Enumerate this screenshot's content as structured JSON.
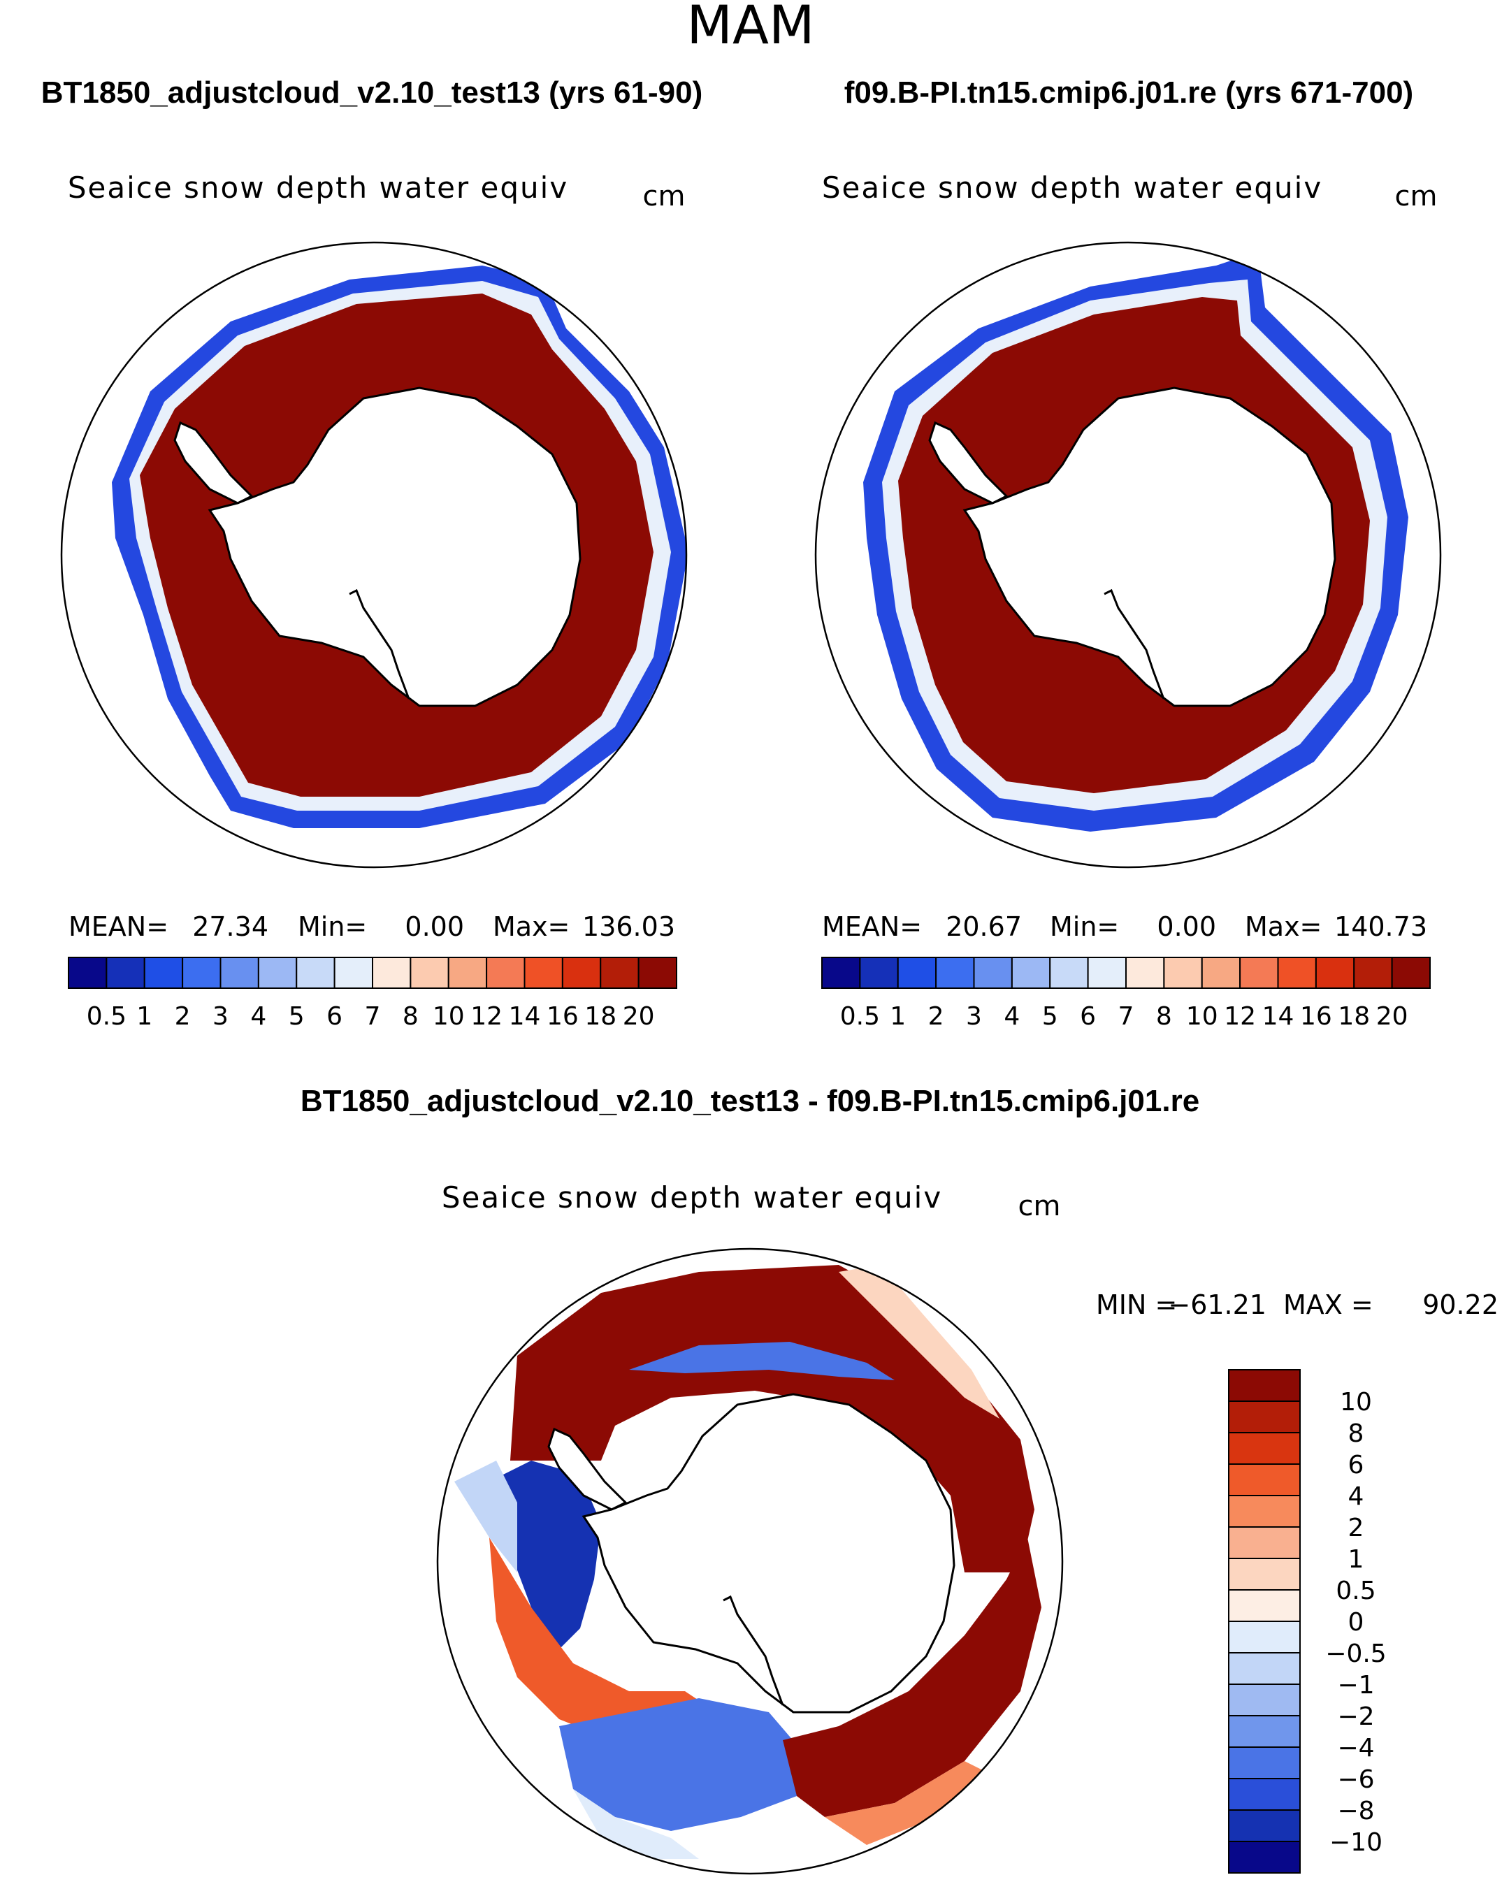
{
  "season": "MAM",
  "colors": {
    "seq": [
      "#08088a",
      "#1530b8",
      "#1f4fe6",
      "#3c6ef0",
      "#6890f0",
      "#9cb8f4",
      "#c8daf8",
      "#e4eefa",
      "#fde9dc",
      "#fccbb0",
      "#f7a883",
      "#f47a55",
      "#ef5126",
      "#d9300f",
      "#b31e08",
      "#8c0a04"
    ],
    "div": [
      "#8c0a04",
      "#b31e08",
      "#d93510",
      "#ef5a2a",
      "#f78a5c",
      "#f9b090",
      "#fcd6c0",
      "#fdeee4",
      "#e0ecfb",
      "#c2d6f7",
      "#9fbaf2",
      "#7096ec",
      "#4a74e6",
      "#2a4fd9",
      "#1532b2",
      "#08088a"
    ]
  },
  "top_left": {
    "case_title": "BT1850_adjustcloud_v2.10_test13 (yrs 61-90)",
    "var_title": "Seaice snow depth water equiv",
    "units": "cm",
    "stats": {
      "mean_label": "MEAN=",
      "mean": "27.34",
      "min_label": "Min=",
      "min": "0.00",
      "max_label": "Max=",
      "max": "136.03"
    },
    "colorbar_labels": [
      "0.5",
      "1",
      "2",
      "3",
      "4",
      "5",
      "6",
      "7",
      "8",
      "10",
      "12",
      "14",
      "16",
      "18",
      "20"
    ]
  },
  "top_right": {
    "case_title": "f09.B-PI.tn15.cmip6.j01.re (yrs 671-700)",
    "var_title": "Seaice snow depth water equiv",
    "units": "cm",
    "stats": {
      "mean_label": "MEAN=",
      "mean": "20.67",
      "min_label": "Min=",
      "min": "0.00",
      "max_label": "Max=",
      "max": "140.73"
    },
    "colorbar_labels": [
      "0.5",
      "1",
      "2",
      "3",
      "4",
      "5",
      "6",
      "7",
      "8",
      "10",
      "12",
      "14",
      "16",
      "18",
      "20"
    ]
  },
  "bottom": {
    "case_title": "BT1850_adjustcloud_v2.10_test13 - f09.B-PI.tn15.cmip6.j01.re",
    "var_title": "Seaice snow depth water equiv",
    "units": "cm",
    "stats": {
      "min_label": "MIN =",
      "min": "−61.21",
      "max_label": "MAX =",
      "max": "90.22"
    },
    "colorbar_labels": [
      "10",
      "8",
      "6",
      "4",
      "2",
      "1",
      "0.5",
      "0",
      "−0.5",
      "−1",
      "−2",
      "−4",
      "−6",
      "−8",
      "−10"
    ]
  }
}
